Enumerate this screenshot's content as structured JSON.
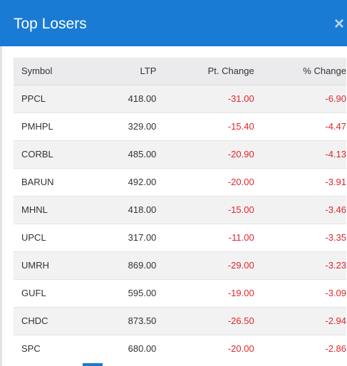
{
  "modal": {
    "title": "Top Losers",
    "close_label": "×"
  },
  "table": {
    "headers": {
      "symbol": "Symbol",
      "ltp": "LTP",
      "pt_change": "Pt. Change",
      "pct_change": "% Change"
    },
    "rows": [
      {
        "symbol": "PPCL",
        "ltp": "418.00",
        "pt_change": "-31.00",
        "pct_change": "-6.90"
      },
      {
        "symbol": "PMHPL",
        "ltp": "329.00",
        "pt_change": "-15.40",
        "pct_change": "-4.47"
      },
      {
        "symbol": "CORBL",
        "ltp": "485.00",
        "pt_change": "-20.90",
        "pct_change": "-4.13"
      },
      {
        "symbol": "BARUN",
        "ltp": "492.00",
        "pt_change": "-20.00",
        "pct_change": "-3.91"
      },
      {
        "symbol": "MHNL",
        "ltp": "418.00",
        "pt_change": "-15.00",
        "pct_change": "-3.46"
      },
      {
        "symbol": "UPCL",
        "ltp": "317.00",
        "pt_change": "-11.00",
        "pct_change": "-3.35"
      },
      {
        "symbol": "UMRH",
        "ltp": "869.00",
        "pt_change": "-29.00",
        "pct_change": "-3.23"
      },
      {
        "symbol": "GUFL",
        "ltp": "595.00",
        "pt_change": "-19.00",
        "pct_change": "-3.09"
      },
      {
        "symbol": "CHDC",
        "ltp": "873.50",
        "pt_change": "-26.50",
        "pct_change": "-2.94"
      },
      {
        "symbol": "SPC",
        "ltp": "680.00",
        "pt_change": "-20.00",
        "pct_change": "-2.86"
      }
    ]
  },
  "colors": {
    "header_bg": "#1a7bd4",
    "negative": "#e0262c"
  }
}
